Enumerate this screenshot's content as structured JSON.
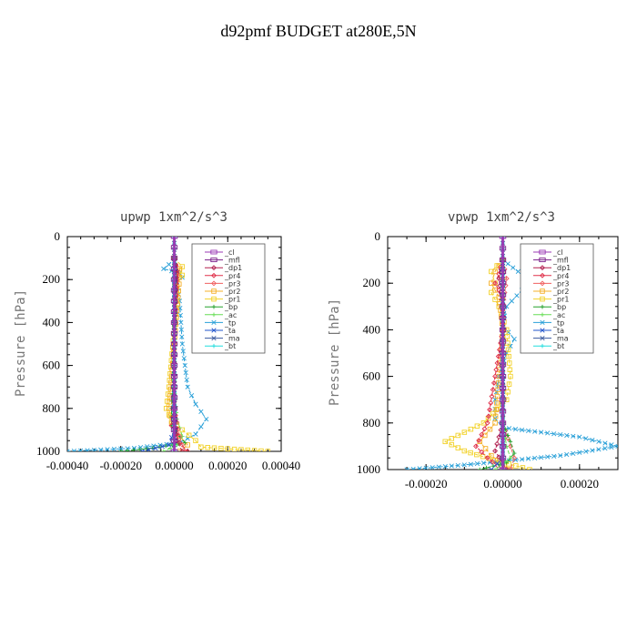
{
  "figure_title": "d92pmf  BUDGET at280E,5N",
  "legend_labels": [
    "_cl",
    "_mfl",
    "_dp1",
    "_pr4",
    "_pr3",
    "_pr2",
    "_pr1",
    "_bp",
    "_ac",
    "_tp",
    "_ta",
    "_ma",
    "_bt"
  ],
  "colors": {
    "_cl": "#9b3bb5",
    "_mfl": "#7a1f8a",
    "_dp1": "#b3204f",
    "_pr4": "#e0304a",
    "_pr3": "#f06060",
    "_pr2": "#f5b02a",
    "_pr1": "#f2d22a",
    "_bp": "#22a02a",
    "_ac": "#66dd55",
    "_tp": "#2aa0d8",
    "_ta": "#2255cc",
    "_ma": "#3a5aa0",
    "_bt": "#22dddd"
  },
  "chart_data": [
    {
      "type": "line",
      "title": "upwp   1xm^2/s^3",
      "ylabel": "Pressure [hPa]",
      "xlim": [
        -0.0004,
        0.0004
      ],
      "ylim": [
        1000,
        0
      ],
      "xticks": [
        "-0.00040",
        "-0.00020",
        "0.00000",
        "0.00020",
        "0.00040"
      ],
      "xtick_values": [
        -0.0004,
        -0.0002,
        0,
        0.0002,
        0.0004
      ],
      "yticks": [
        "0",
        "200",
        "400",
        "600",
        "800",
        "1000"
      ],
      "ytick_values": [
        0,
        200,
        400,
        600,
        800,
        1000
      ],
      "legend": "top-right",
      "series": [
        {
          "name": "_tp",
          "x": [
            0.0,
            -2e-05,
            -4e-05,
            2e-05,
            3e-05,
            1e-05,
            2e-05,
            3e-05,
            5e-05,
            8e-05,
            0.00012,
            8e-05,
            2e-05,
            -0.00015,
            -0.0004
          ],
          "y": [
            100,
            130,
            150,
            170,
            190,
            210,
            300,
            500,
            700,
            780,
            850,
            920,
            960,
            985,
            1000
          ]
        },
        {
          "name": "_pr1",
          "x": [
            0.0,
            3e-05,
            2e-05,
            3e-05,
            1e-05,
            1e-05,
            -2e-05,
            -3e-05,
            -1e-05,
            3e-05,
            8e-05,
            0.0001,
            0.00035
          ],
          "y": [
            100,
            140,
            160,
            180,
            200,
            300,
            700,
            800,
            860,
            900,
            950,
            980,
            1000
          ]
        },
        {
          "name": "_pr2",
          "x": [
            0.0,
            2e-05,
            2e-05,
            0.0,
            -2e-05,
            -1e-05,
            2e-05,
            5e-05,
            2e-05
          ],
          "y": [
            100,
            150,
            190,
            500,
            800,
            870,
            930,
            970,
            1000
          ]
        },
        {
          "name": "_bp",
          "x": [
            0.0,
            0.0,
            -1e-05,
            -1e-05,
            2e-05,
            4e-05,
            -8e-05,
            -0.0002
          ],
          "y": [
            100,
            600,
            800,
            880,
            930,
            960,
            985,
            1000
          ]
        },
        {
          "name": "_ac",
          "x": [
            0.0,
            0.0,
            1e-05,
            3e-05,
            1e-05,
            -4e-05
          ],
          "y": [
            100,
            700,
            850,
            930,
            970,
            1000
          ]
        },
        {
          "name": "_pr3",
          "x": [
            0.0,
            1e-05,
            0.0,
            0.0,
            2e-05,
            3e-05,
            4e-05
          ],
          "y": [
            100,
            180,
            400,
            800,
            930,
            970,
            1000
          ]
        },
        {
          "name": "_pr4",
          "x": [
            0.0,
            1e-05,
            0.0,
            0.0,
            -1e-05,
            2e-05,
            5e-05
          ],
          "y": [
            100,
            170,
            400,
            800,
            880,
            960,
            1000
          ]
        },
        {
          "name": "_dp1",
          "x": [
            0.0,
            1e-05,
            0.0,
            0.0,
            1e-05,
            3e-05
          ],
          "y": [
            100,
            160,
            400,
            800,
            950,
            1000
          ]
        },
        {
          "name": "_ta",
          "x": [
            0.0,
            0.0,
            -2e-05,
            -0.00012
          ],
          "y": [
            100,
            900,
            970,
            1000
          ]
        },
        {
          "name": "_ma",
          "x": [
            0.0,
            0.0
          ],
          "y": [
            0,
            1000
          ]
        },
        {
          "name": "_bt",
          "x": [
            0.0,
            0.0
          ],
          "y": [
            0,
            1000
          ]
        },
        {
          "name": "_mfl",
          "x": [
            0.0,
            0.0,
            0.0,
            0.0,
            0.0,
            0.0,
            0.0,
            0.0,
            0.0,
            0.0,
            0.0,
            0.0,
            0.0,
            0.0,
            0.0,
            0.0,
            0.0,
            0.0,
            0.0,
            0.0,
            0.0
          ],
          "y": [
            0,
            50,
            100,
            150,
            200,
            250,
            300,
            350,
            400,
            450,
            500,
            550,
            600,
            650,
            700,
            750,
            800,
            850,
            900,
            950,
            1000
          ]
        },
        {
          "name": "_cl",
          "x": [
            0.0,
            0.0
          ],
          "y": [
            0,
            1000
          ]
        }
      ]
    },
    {
      "type": "line",
      "title": "vpwp   1xm^2/s^3",
      "ylabel": "Pressure [hPa]",
      "xlim": [
        -0.0003,
        0.0003
      ],
      "ylim": [
        1000,
        0
      ],
      "xticks": [
        "-0.00020",
        "0.00000",
        "0.00020"
      ],
      "xtick_values": [
        -0.0002,
        0,
        0.0002
      ],
      "yticks": [
        "0",
        "200",
        "400",
        "600",
        "800",
        "1000"
      ],
      "ytick_values": [
        0,
        200,
        400,
        600,
        800,
        1000
      ],
      "legend": "top-right",
      "series": [
        {
          "name": "_tp",
          "x": [
            0.0,
            4e-05,
            0.0001,
            5e-05,
            1e-05,
            0.0,
            3e-05,
            1e-05,
            -1e-05,
            -2e-05,
            -2e-05,
            0.0,
            0.0002,
            0.0003,
            0.00015,
            -0.0001,
            -0.00025
          ],
          "y": [
            100,
            150,
            180,
            230,
            300,
            380,
            440,
            500,
            600,
            700,
            780,
            820,
            860,
            900,
            940,
            980,
            1000
          ]
        },
        {
          "name": "_pr1",
          "x": [
            0.0,
            -3e-05,
            -2e-05,
            -3e-05,
            -1e-05,
            1e-05,
            2e-05,
            1e-05,
            -5e-05,
            -0.00015,
            -0.0001,
            -2e-05,
            7e-05
          ],
          "y": [
            100,
            150,
            200,
            240,
            300,
            400,
            600,
            700,
            800,
            880,
            920,
            960,
            1000
          ]
        },
        {
          "name": "_pr2",
          "x": [
            0.0,
            -2e-05,
            -3e-05,
            -1e-05,
            0.0,
            -2e-05,
            -6e-05,
            -3e-05,
            2e-05
          ],
          "y": [
            100,
            150,
            200,
            260,
            400,
            800,
            880,
            940,
            1000
          ]
        },
        {
          "name": "_pr4",
          "x": [
            0.0,
            -1e-05,
            -2e-05,
            0.0,
            0.0,
            -4e-05,
            -7e-05,
            -4e-05,
            0.0
          ],
          "y": [
            100,
            160,
            200,
            260,
            400,
            800,
            900,
            950,
            1000
          ]
        },
        {
          "name": "_dp1",
          "x": [
            0.0,
            -1e-05,
            0.0,
            0.0,
            -2e-05,
            1e-05
          ],
          "y": [
            100,
            180,
            300,
            800,
            920,
            1000
          ]
        },
        {
          "name": "_pr3",
          "x": [
            0.0,
            1e-05,
            0.0,
            0.0,
            2e-05,
            3e-05,
            2e-05
          ],
          "y": [
            100,
            180,
            300,
            800,
            900,
            950,
            1000
          ]
        },
        {
          "name": "_bp",
          "x": [
            0.0,
            0.0,
            2e-05,
            3e-05,
            1e-05,
            -6e-05
          ],
          "y": [
            100,
            800,
            880,
            930,
            970,
            1000
          ]
        },
        {
          "name": "_ac",
          "x": [
            0.0,
            0.0,
            1e-05,
            2e-05,
            -2e-05
          ],
          "y": [
            100,
            800,
            900,
            950,
            1000
          ]
        },
        {
          "name": "_ta",
          "x": [
            0.0,
            0.0,
            -3e-05
          ],
          "y": [
            100,
            950,
            1000
          ]
        },
        {
          "name": "_ma",
          "x": [
            0.0,
            0.0
          ],
          "y": [
            0,
            1000
          ]
        },
        {
          "name": "_bt",
          "x": [
            0.0,
            0.0
          ],
          "y": [
            0,
            1000
          ]
        },
        {
          "name": "_mfl",
          "x": [
            0.0,
            0.0,
            0.0,
            0.0,
            0.0,
            0.0,
            0.0,
            0.0,
            0.0,
            0.0,
            0.0,
            0.0,
            0.0,
            0.0,
            0.0,
            0.0,
            0.0,
            0.0,
            0.0,
            0.0,
            0.0
          ],
          "y": [
            0,
            50,
            100,
            150,
            200,
            250,
            300,
            350,
            400,
            450,
            500,
            550,
            600,
            650,
            700,
            750,
            800,
            850,
            900,
            950,
            1000
          ]
        },
        {
          "name": "_cl",
          "x": [
            0.0,
            0.0
          ],
          "y": [
            0,
            1000
          ]
        }
      ]
    }
  ]
}
